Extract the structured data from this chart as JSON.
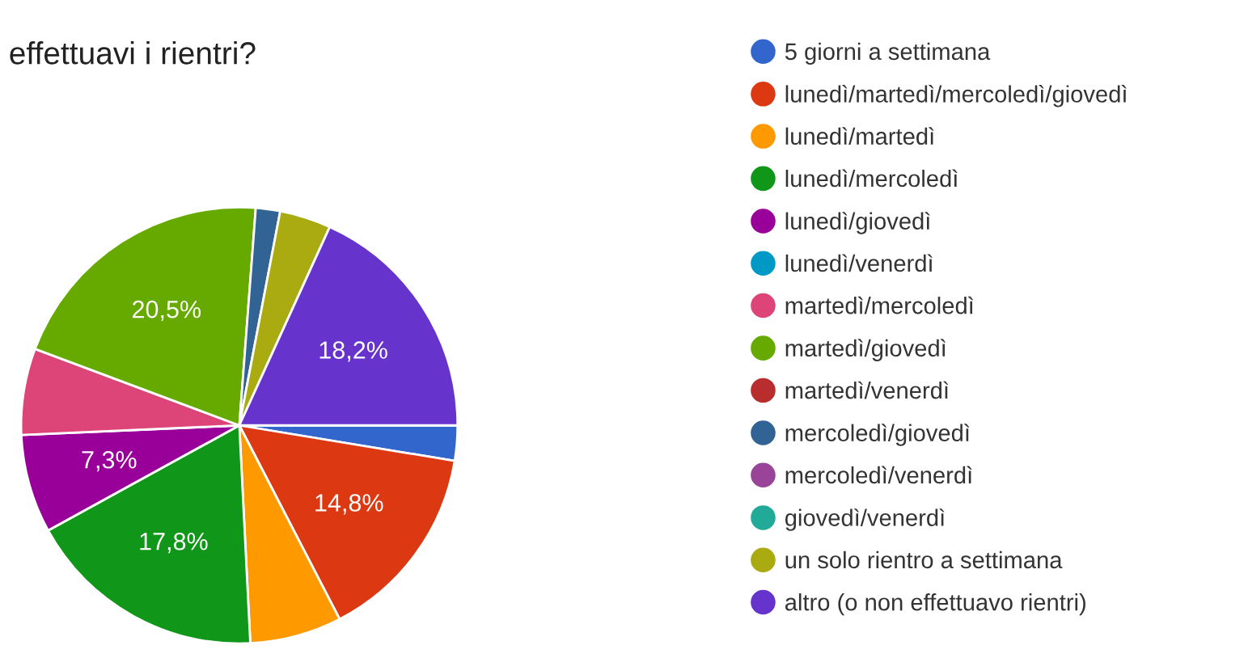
{
  "chart_data": {
    "type": "pie",
    "title": "effettuavi i rientri?",
    "categories": [
      "5 giorni a settimana",
      "lunedì/martedì/mercoledì/giovedì",
      "lunedì/martedì",
      "lunedì/mercoledì",
      "lunedì/giovedì",
      "lunedì/venerdì",
      "martedì/mercoledì",
      "martedì/giovedì",
      "martedì/venerdì",
      "mercoledì/giovedì",
      "mercoledì/venerdì",
      "giovedì/venerdì",
      "un solo rientro a settimana",
      "altro (o non effettuavo rientri)"
    ],
    "values": [
      2.6,
      14.8,
      6.8,
      17.8,
      7.3,
      0,
      6.4,
      20.5,
      0,
      1.8,
      0,
      0,
      3.8,
      18.2
    ],
    "value_labels": [
      null,
      "14,8%",
      null,
      "17,8%",
      "7,3%",
      null,
      null,
      "20,5%",
      null,
      null,
      null,
      null,
      null,
      "18,2%"
    ],
    "colors": [
      "#3366cc",
      "#dc3912",
      "#ff9900",
      "#109618",
      "#990099",
      "#0099c6",
      "#dd4477",
      "#66aa00",
      "#b82e2e",
      "#316395",
      "#994499",
      "#22aa99",
      "#aaaa11",
      "#6633cc"
    ],
    "legend": "right"
  }
}
